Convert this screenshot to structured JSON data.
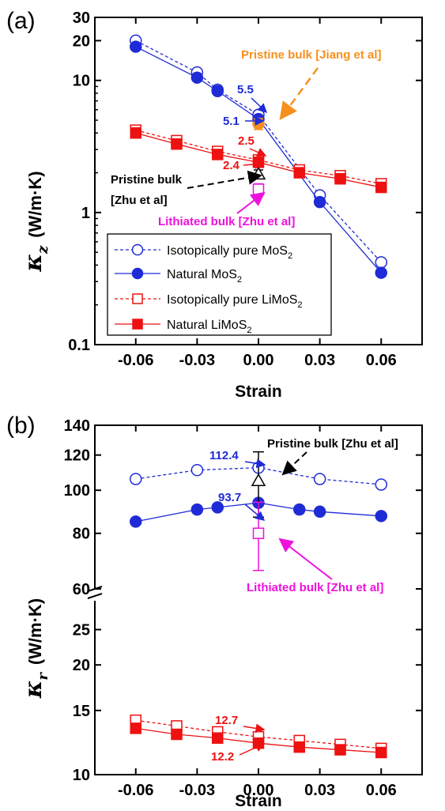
{
  "figure": {
    "panels": [
      "(a)",
      "(b)"
    ]
  },
  "colors": {
    "blue": "#1f2bd6",
    "red": "#ee1111",
    "orange": "#f5901e",
    "magenta": "#ee11dd",
    "black": "#000000"
  },
  "chart_data": [
    {
      "type": "line",
      "panel": "(a)",
      "xlabel": "Strain",
      "ylabel": "κz (W/m·K)",
      "y_scale": "log",
      "xlim": [
        -0.08,
        0.08
      ],
      "ylim": [
        0.1,
        30
      ],
      "x_ticks": [
        "-0.06",
        "-0.03",
        "0.00",
        "0.03",
        "0.06"
      ],
      "y_ticks": [
        "0.1",
        "1",
        "10",
        "20",
        "30"
      ],
      "legend_position": "bottom-left",
      "series": [
        {
          "name": "Isotopically pure MoS2",
          "legend_main": "Isotopically pure MoS",
          "legend_sub": "2",
          "color": "#1f2bd6",
          "marker": "circle-open",
          "dash": true,
          "x": [
            -0.06,
            -0.03,
            -0.02,
            0.0,
            0.03,
            0.06
          ],
          "y": [
            20.0,
            11.5,
            8.5,
            5.5,
            1.35,
            0.42
          ]
        },
        {
          "name": "Natural MoS2",
          "legend_main": "Natural MoS",
          "legend_sub": "2",
          "color": "#1f2bd6",
          "marker": "circle-filled",
          "dash": false,
          "x": [
            -0.06,
            -0.03,
            -0.02,
            0.0,
            0.03,
            0.06
          ],
          "y": [
            18.0,
            10.5,
            8.3,
            5.1,
            1.2,
            0.35
          ]
        },
        {
          "name": "Isotopically pure LiMoS2",
          "legend_main": "Isotopically pure LiMoS",
          "legend_sub": "2",
          "color": "#ee1111",
          "marker": "square-open",
          "dash": true,
          "x": [
            -0.06,
            -0.04,
            -0.02,
            0.0,
            0.02,
            0.04,
            0.06
          ],
          "y": [
            4.2,
            3.5,
            2.9,
            2.5,
            2.1,
            1.9,
            1.65
          ]
        },
        {
          "name": "Natural LiMoS2",
          "legend_main": "Natural LiMoS",
          "legend_sub": "2",
          "color": "#ee1111",
          "marker": "square-filled",
          "dash": false,
          "x": [
            -0.06,
            -0.04,
            -0.02,
            0.0,
            0.02,
            0.04,
            0.06
          ],
          "y": [
            4.0,
            3.3,
            2.75,
            2.4,
            2.0,
            1.8,
            1.55
          ]
        }
      ],
      "reference_points": [
        {
          "label": "Pristine bulk [Jiang et al]",
          "x": 0.0,
          "y": 4.7,
          "err": 0.45,
          "color": "#f5901e",
          "marker": "circle-filled"
        },
        {
          "label": "Pristine bulk [Zhu et al]",
          "x": 0.0,
          "y": 1.95,
          "err": 0.15,
          "color": "#000000",
          "marker": "triangle-open"
        },
        {
          "label": "Lithiated bulk [Zhu et al]",
          "x": 0.0,
          "y": 1.5,
          "err": 0.15,
          "color": "#ee11dd",
          "marker": "square-open"
        }
      ],
      "annotations": [
        {
          "text": "5.5",
          "color": "#1f2bd6"
        },
        {
          "text": "5.1",
          "color": "#1f2bd6"
        },
        {
          "text": "2.5",
          "color": "#ee1111"
        },
        {
          "text": "2.4",
          "color": "#ee1111"
        },
        {
          "text": "Pristine bulk [Jiang et al]",
          "color": "#f5901e"
        },
        {
          "text_line1": "Pristine bulk",
          "text_line2": "[Zhu et al]",
          "color": "#000000"
        },
        {
          "text": "Lithiated bulk [Zhu et al]",
          "color": "#ee11dd"
        }
      ]
    },
    {
      "type": "line",
      "panel": "(b)",
      "xlabel": "Strain",
      "ylabel": "κr (W/m·K)",
      "y_scale": "log",
      "y_axis_break": true,
      "xlim": [
        -0.08,
        0.08
      ],
      "upper_ylim": [
        60,
        140
      ],
      "lower_ylim": [
        10,
        30
      ],
      "x_ticks": [
        "-0.06",
        "-0.03",
        "0.00",
        "0.03",
        "0.06"
      ],
      "upper_y_ticks": [
        "60",
        "80",
        "100",
        "120",
        "140"
      ],
      "lower_y_ticks": [
        "10",
        "15",
        "20",
        "25"
      ],
      "series": [
        {
          "name": "Isotopically pure MoS2",
          "color": "#1f2bd6",
          "marker": "circle-open",
          "dash": true,
          "x": [
            -0.06,
            -0.03,
            0.0,
            0.03,
            0.06
          ],
          "y": [
            106,
            111,
            112.4,
            106,
            103
          ]
        },
        {
          "name": "Natural MoS2",
          "color": "#1f2bd6",
          "marker": "circle-filled",
          "dash": false,
          "x": [
            -0.06,
            -0.03,
            -0.02,
            0.0,
            0.02,
            0.03,
            0.06
          ],
          "y": [
            85,
            90.5,
            91.5,
            93.7,
            90.5,
            89.5,
            87.5
          ]
        },
        {
          "name": "Isotopically pure LiMoS2",
          "color": "#ee1111",
          "marker": "square-open",
          "dash": true,
          "x": [
            -0.06,
            -0.04,
            -0.02,
            0.0,
            0.02,
            0.04,
            0.06
          ],
          "y": [
            14.1,
            13.6,
            13.1,
            12.7,
            12.4,
            12.1,
            11.8
          ]
        },
        {
          "name": "Natural LiMoS2",
          "color": "#ee1111",
          "marker": "square-filled",
          "dash": false,
          "x": [
            -0.06,
            -0.04,
            -0.02,
            0.0,
            0.02,
            0.04,
            0.06
          ],
          "y": [
            13.4,
            12.9,
            12.6,
            12.2,
            11.9,
            11.7,
            11.5
          ]
        }
      ],
      "reference_points": [
        {
          "label": "Pristine bulk [Zhu et al]",
          "x": 0.0,
          "y": 105,
          "err_low": 87,
          "err_high": 122,
          "color": "#000000",
          "marker": "triangle-open"
        },
        {
          "label": "Lithiated bulk [Zhu et al]",
          "x": 0.0,
          "y": 80,
          "err_low": 66,
          "err_high": 94,
          "color": "#ee11dd",
          "marker": "square-open"
        }
      ],
      "annotations": [
        {
          "text": "112.4",
          "color": "#1f2bd6"
        },
        {
          "text": "93.7",
          "color": "#1f2bd6"
        },
        {
          "text": "12.7",
          "color": "#ee1111"
        },
        {
          "text": "12.2",
          "color": "#ee1111"
        },
        {
          "text": "Pristine bulk [Zhu et al]",
          "color": "#000000"
        },
        {
          "text": "Lithiated bulk [Zhu et al]",
          "color": "#ee11dd"
        }
      ]
    }
  ]
}
